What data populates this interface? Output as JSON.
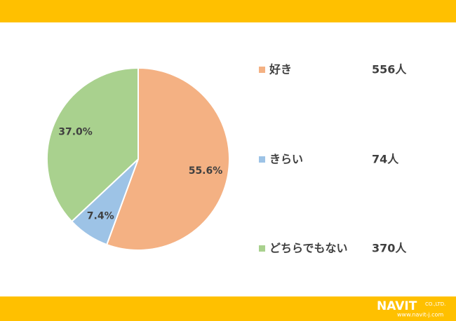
{
  "chart_data": {
    "type": "pie",
    "categories": [
      "好き",
      "きらい",
      "どちらでもない"
    ],
    "values": [
      55.6,
      7.4,
      37.0
    ],
    "value_labels": [
      "55.6%",
      "7.4%",
      "37.0%"
    ],
    "colors": [
      "#F4B183",
      "#9DC3E6",
      "#A9D18E"
    ],
    "counts": [
      556,
      74,
      370
    ],
    "count_labels": [
      "556人",
      "74人",
      "370人"
    ]
  },
  "logo": {
    "name": "NAVIT",
    "suffix": "CO.,LTD.",
    "url": "www.navit-j.com"
  }
}
